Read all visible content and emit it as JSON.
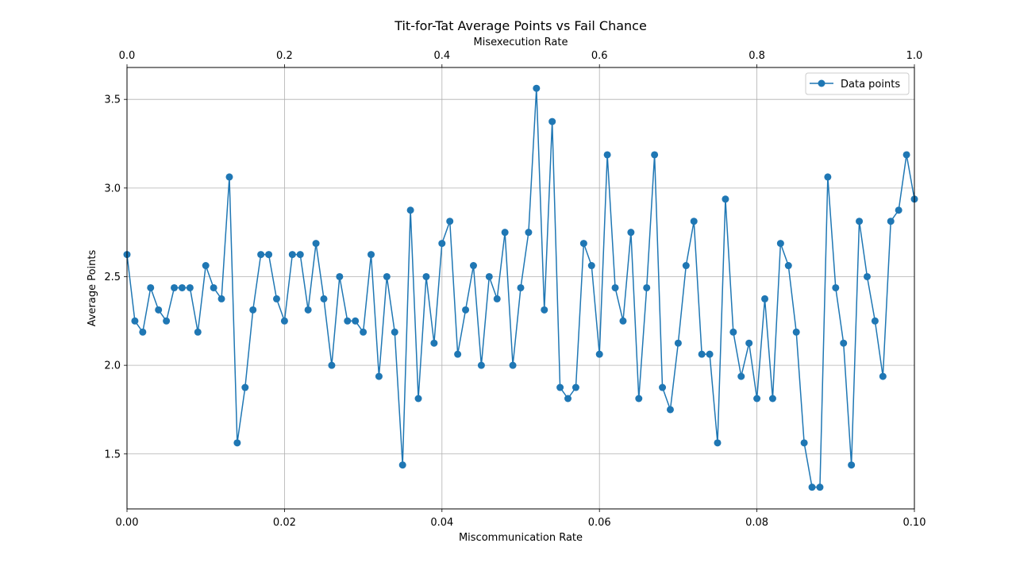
{
  "chart_data": {
    "type": "line",
    "title": "Tit-for-Tat Average Points vs Fail Chance",
    "xlabel": "Miscommunication Rate",
    "xlabel_top": "Misexecution Rate",
    "ylabel": "Average Points",
    "xlim": [
      0,
      0.1
    ],
    "xlim_top": [
      0,
      1.0
    ],
    "ylim": [
      1.19,
      3.68
    ],
    "x_ticks": [
      "0.00",
      "0.02",
      "0.04",
      "0.06",
      "0.08",
      "0.10"
    ],
    "x_ticks_top": [
      "0.0",
      "0.2",
      "0.4",
      "0.6",
      "0.8",
      "1.0"
    ],
    "y_ticks": [
      "1.5",
      "2.0",
      "2.5",
      "3.0",
      "3.5"
    ],
    "grid": true,
    "legend_position": "top-right",
    "color": "#1f77b4",
    "series": [
      {
        "name": "Data points",
        "x": [
          0.0,
          0.001,
          0.002,
          0.003,
          0.004,
          0.005,
          0.006,
          0.007,
          0.008,
          0.009,
          0.01,
          0.011,
          0.012,
          0.013,
          0.014,
          0.015,
          0.016,
          0.017,
          0.018,
          0.019,
          0.02,
          0.021,
          0.022,
          0.023,
          0.024,
          0.025,
          0.026,
          0.027,
          0.028,
          0.029,
          0.03,
          0.031,
          0.032,
          0.033,
          0.034,
          0.035,
          0.036,
          0.037,
          0.038,
          0.039,
          0.04,
          0.041,
          0.042,
          0.043,
          0.044,
          0.045,
          0.046,
          0.047,
          0.048,
          0.049,
          0.05,
          0.051,
          0.052,
          0.053,
          0.054,
          0.055,
          0.056,
          0.057,
          0.058,
          0.059,
          0.06,
          0.061,
          0.062,
          0.063,
          0.064,
          0.065,
          0.066,
          0.067,
          0.068,
          0.069,
          0.07,
          0.071,
          0.072,
          0.073,
          0.074,
          0.075,
          0.076,
          0.077,
          0.078,
          0.079,
          0.08,
          0.081,
          0.082,
          0.083,
          0.084,
          0.085,
          0.086,
          0.087,
          0.088,
          0.089,
          0.09,
          0.091,
          0.092,
          0.093,
          0.094,
          0.095,
          0.096,
          0.097,
          0.098,
          0.099,
          0.1
        ],
        "y": [
          2.625,
          2.25,
          2.1875,
          2.4375,
          2.3125,
          2.25,
          2.4375,
          2.4375,
          2.4375,
          2.1875,
          2.5625,
          2.4375,
          2.375,
          3.0625,
          1.5625,
          1.875,
          2.3125,
          2.625,
          2.625,
          2.375,
          2.25,
          2.625,
          2.625,
          2.3125,
          2.6875,
          2.375,
          2.0,
          2.5,
          2.25,
          2.25,
          2.1875,
          2.625,
          1.9375,
          2.5,
          2.1875,
          1.4375,
          2.875,
          1.8125,
          2.5,
          2.125,
          2.6875,
          2.8125,
          2.0625,
          2.3125,
          2.5625,
          2.0,
          2.5,
          2.375,
          2.75,
          2.0,
          2.4375,
          2.75,
          3.5625,
          2.3125,
          3.375,
          1.875,
          1.8125,
          1.875,
          2.6875,
          2.5625,
          2.0625,
          3.1875,
          2.4375,
          2.25,
          2.75,
          1.8125,
          2.4375,
          3.1875,
          1.875,
          1.75,
          2.125,
          2.5625,
          2.8125,
          2.0625,
          2.0625,
          1.5625,
          2.9375,
          2.1875,
          1.9375,
          2.125,
          1.8125,
          2.375,
          1.8125,
          2.6875,
          2.5625,
          2.1875,
          1.5625,
          1.3125,
          1.3125,
          3.0625,
          2.4375,
          2.125,
          1.4375,
          2.8125,
          2.5,
          2.25,
          1.9375,
          2.8125,
          2.875,
          3.1875,
          2.9375
        ]
      }
    ]
  }
}
